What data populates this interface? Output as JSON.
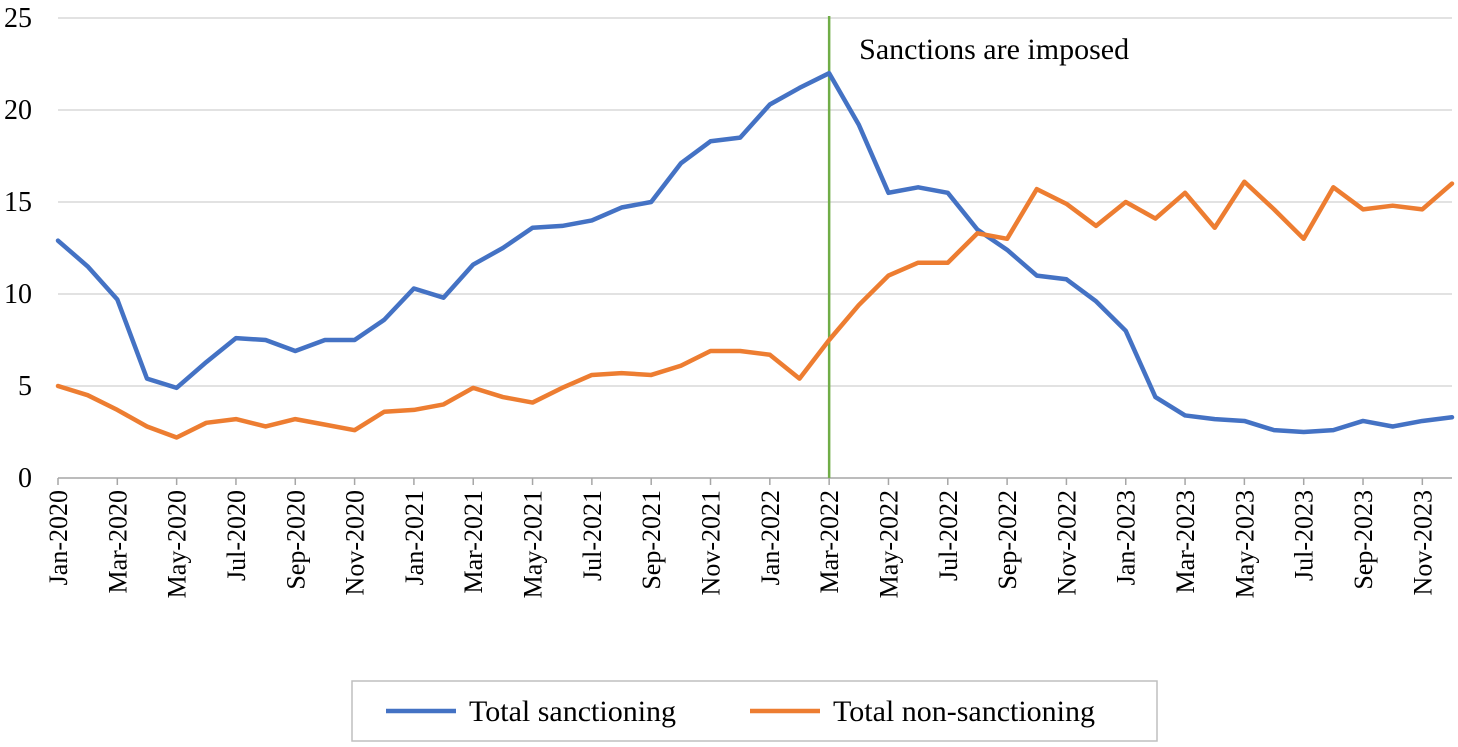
{
  "chart_data": {
    "type": "line",
    "x": [
      "Jan-2020",
      "Feb-2020",
      "Mar-2020",
      "Apr-2020",
      "May-2020",
      "Jun-2020",
      "Jul-2020",
      "Aug-2020",
      "Sep-2020",
      "Oct-2020",
      "Nov-2020",
      "Dec-2020",
      "Jan-2021",
      "Feb-2021",
      "Mar-2021",
      "Apr-2021",
      "May-2021",
      "Jun-2021",
      "Jul-2021",
      "Aug-2021",
      "Sep-2021",
      "Oct-2021",
      "Nov-2021",
      "Dec-2021",
      "Jan-2022",
      "Feb-2022",
      "Mar-2022",
      "Apr-2022",
      "May-2022",
      "Jun-2022",
      "Jul-2022",
      "Aug-2022",
      "Sep-2022",
      "Oct-2022",
      "Nov-2022",
      "Dec-2022",
      "Jan-2023",
      "Feb-2023",
      "Mar-2023",
      "Apr-2023",
      "May-2023",
      "Jun-2023",
      "Jul-2023",
      "Aug-2023",
      "Sep-2023",
      "Oct-2023",
      "Nov-2023",
      "Dec-2023"
    ],
    "x_tick_labels": [
      "Jan-2020",
      "Mar-2020",
      "May-2020",
      "Jul-2020",
      "Sep-2020",
      "Nov-2020",
      "Jan-2021",
      "Mar-2021",
      "May-2021",
      "Jul-2021",
      "Sep-2021",
      "Nov-2021",
      "Jan-2022",
      "Mar-2022",
      "May-2022",
      "Jul-2022",
      "Sep-2022",
      "Nov-2022",
      "Jan-2023",
      "Mar-2023",
      "May-2023",
      "Jul-2023",
      "Sep-2023",
      "Nov-2023"
    ],
    "series": [
      {
        "name": "Total sanctioning",
        "color": "#4472C4",
        "values": [
          12.9,
          11.5,
          9.7,
          5.4,
          4.9,
          6.3,
          7.6,
          7.5,
          6.9,
          7.5,
          7.5,
          8.6,
          10.3,
          9.8,
          11.6,
          12.5,
          13.6,
          13.7,
          14.0,
          14.7,
          15.0,
          17.1,
          18.3,
          18.5,
          20.3,
          21.2,
          22.0,
          19.2,
          15.5,
          15.8,
          15.5,
          13.5,
          12.4,
          11.0,
          10.8,
          9.6,
          8.0,
          4.4,
          3.4,
          3.2,
          3.1,
          2.6,
          2.5,
          2.6,
          3.1,
          2.8,
          3.1,
          3.3
        ]
      },
      {
        "name": "Total non-sanctioning",
        "color": "#ED7D31",
        "values": [
          5.0,
          4.5,
          3.7,
          2.8,
          2.2,
          3.0,
          3.2,
          2.8,
          3.2,
          2.9,
          2.6,
          3.6,
          3.7,
          4.0,
          4.9,
          4.4,
          4.1,
          4.9,
          5.6,
          5.7,
          5.6,
          6.1,
          6.9,
          6.9,
          6.7,
          5.4,
          7.5,
          9.4,
          11.0,
          11.7,
          11.7,
          13.3,
          13.0,
          15.7,
          14.9,
          13.7,
          15.0,
          14.1,
          15.5,
          13.6,
          16.1,
          14.6,
          13.0,
          15.8,
          14.6,
          14.8,
          14.6,
          16.0
        ]
      }
    ],
    "ylim": [
      0,
      25
    ],
    "y_ticks": [
      0,
      5,
      10,
      15,
      20,
      25
    ],
    "grid": true,
    "annotation": {
      "text": "Sanctions are imposed",
      "x": "Mar-2022",
      "line_color": "#70AD47"
    },
    "legend_position": "bottom"
  }
}
